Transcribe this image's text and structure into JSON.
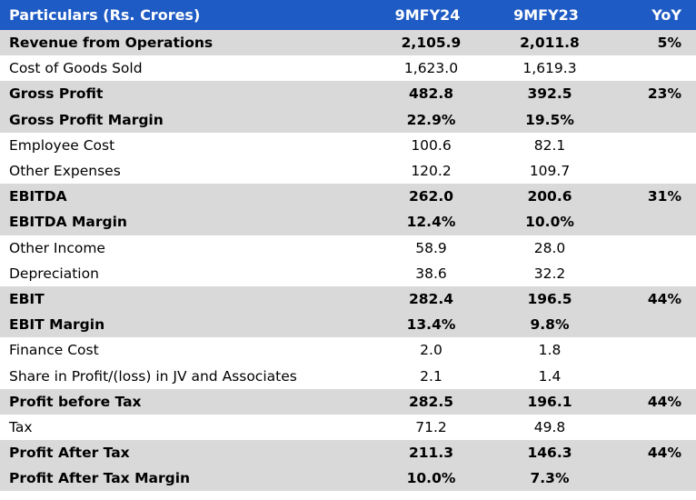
{
  "table": {
    "headers": [
      "Particulars (Rs. Crores)",
      "9MFY24",
      "9MFY23",
      "YoY"
    ],
    "rows": [
      {
        "label": "Revenue from Operations",
        "fy24": "2,105.9",
        "fy23": "2,011.8",
        "yoy": "5%"
      },
      {
        "label": "Cost of Goods Sold",
        "fy24": "1,623.0",
        "fy23": "1,619.3",
        "yoy": ""
      },
      {
        "label": "Gross Profit",
        "fy24": "482.8",
        "fy23": "392.5",
        "yoy": "23%"
      },
      {
        "label": "Gross Profit Margin",
        "fy24": "22.9%",
        "fy23": "19.5%",
        "yoy": ""
      },
      {
        "label": "Employee Cost",
        "fy24": "100.6",
        "fy23": "82.1",
        "yoy": ""
      },
      {
        "label": "Other Expenses",
        "fy24": "120.2",
        "fy23": "109.7",
        "yoy": ""
      },
      {
        "label": "EBITDA",
        "fy24": "262.0",
        "fy23": "200.6",
        "yoy": "31%"
      },
      {
        "label": "EBITDA Margin",
        "fy24": "12.4%",
        "fy23": "10.0%",
        "yoy": ""
      },
      {
        "label": "Other Income",
        "fy24": "58.9",
        "fy23": "28.0",
        "yoy": ""
      },
      {
        "label": "Depreciation",
        "fy24": "38.6",
        "fy23": "32.2",
        "yoy": ""
      },
      {
        "label": "EBIT",
        "fy24": "282.4",
        "fy23": "196.5",
        "yoy": "44%"
      },
      {
        "label": "EBIT Margin",
        "fy24": "13.4%",
        "fy23": "9.8%",
        "yoy": ""
      },
      {
        "label": "Finance Cost",
        "fy24": "2.0",
        "fy23": "1.8",
        "yoy": ""
      },
      {
        "label": "Share in Profit/(loss) in JV and Associates",
        "fy24": "2.1",
        "fy23": "1.4",
        "yoy": ""
      },
      {
        "label": "Profit before Tax",
        "fy24": "282.5",
        "fy23": "196.1",
        "yoy": "44%"
      },
      {
        "label": "Tax",
        "fy24": "71.2",
        "fy23": "49.8",
        "yoy": ""
      },
      {
        "label": "Profit After Tax",
        "fy24": "211.3",
        "fy23": "146.3",
        "yoy": "44%"
      },
      {
        "label": "Profit After Tax Margin",
        "fy24": "10.0%",
        "fy23": "7.3%",
        "yoy": ""
      }
    ]
  },
  "colors": {
    "header_bg": "#1f5bc4",
    "header_text": "#ffffff",
    "highlight_row_bg": "#d9d9d9"
  }
}
